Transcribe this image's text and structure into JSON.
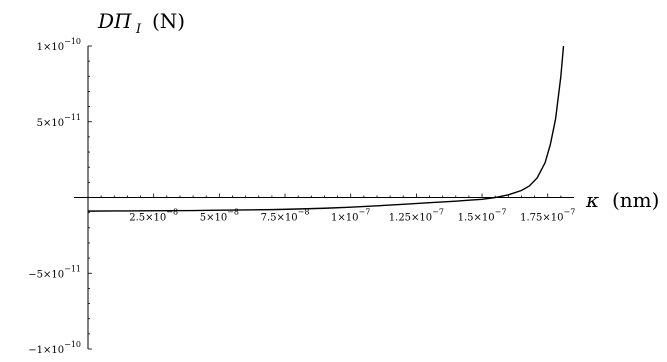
{
  "chart_data": {
    "type": "line",
    "ylabel": "DΠ_I (N)",
    "xlabel": "κ (nm)",
    "ylabel_parts": {
      "main": "DΠ",
      "sub": "I",
      "unit": "(N)"
    },
    "xlabel_parts": {
      "symbol": "κ",
      "unit": "(nm)"
    },
    "xlim": [
      0,
      1.85e-07
    ],
    "ylim": [
      -1e-10,
      1e-10
    ],
    "x_ticks": [
      {
        "value": 2.5e-08,
        "mantissa": "2.5",
        "exp": "−8"
      },
      {
        "value": 5e-08,
        "mantissa": "5",
        "exp": "−8"
      },
      {
        "value": 7.5e-08,
        "mantissa": "7.5",
        "exp": "−8"
      },
      {
        "value": 1e-07,
        "mantissa": "1",
        "exp": "−7"
      },
      {
        "value": 1.25e-07,
        "mantissa": "1.25",
        "exp": "−7"
      },
      {
        "value": 1.5e-07,
        "mantissa": "1.5",
        "exp": "−7"
      },
      {
        "value": 1.75e-07,
        "mantissa": "1.75",
        "exp": "−7"
      }
    ],
    "y_ticks": [
      {
        "value": 1e-10,
        "mantissa": "1",
        "exp": "−10"
      },
      {
        "value": 5e-11,
        "mantissa": "5",
        "exp": "−11"
      },
      {
        "value": -5e-11,
        "mantissa": "−5",
        "exp": "−11"
      },
      {
        "value": -1e-10,
        "mantissa": "−1",
        "exp": "−10"
      }
    ],
    "series": [
      {
        "x": [
          0,
          1e-08,
          2e-08,
          3e-08,
          4e-08,
          5e-08,
          6e-08,
          7e-08,
          8e-08,
          9e-08,
          1e-07,
          1.1e-07,
          1.2e-07,
          1.3e-07,
          1.4e-07,
          1.45e-07,
          1.5e-07,
          1.55e-07,
          1.6e-07,
          1.65e-07,
          1.68e-07,
          1.71e-07,
          1.74e-07,
          1.76e-07,
          1.78e-07,
          1.8e-07,
          1.81e-07
        ],
        "y": [
          -9e-12,
          -8.9e-12,
          -8.8e-12,
          -8.7e-12,
          -8.6e-12,
          -8.4e-12,
          -8.2e-12,
          -8e-12,
          -7.6e-12,
          -7.1e-12,
          -6.4e-12,
          -5.5e-12,
          -4.5e-12,
          -3.4e-12,
          -2.4e-12,
          -1.8e-12,
          -1.2e-12,
          0,
          1.8e-12,
          4.6e-12,
          7.6e-12,
          1.3e-11,
          2.3e-11,
          3.5e-11,
          5.2e-11,
          8e-11,
          1e-10
        ]
      }
    ]
  }
}
